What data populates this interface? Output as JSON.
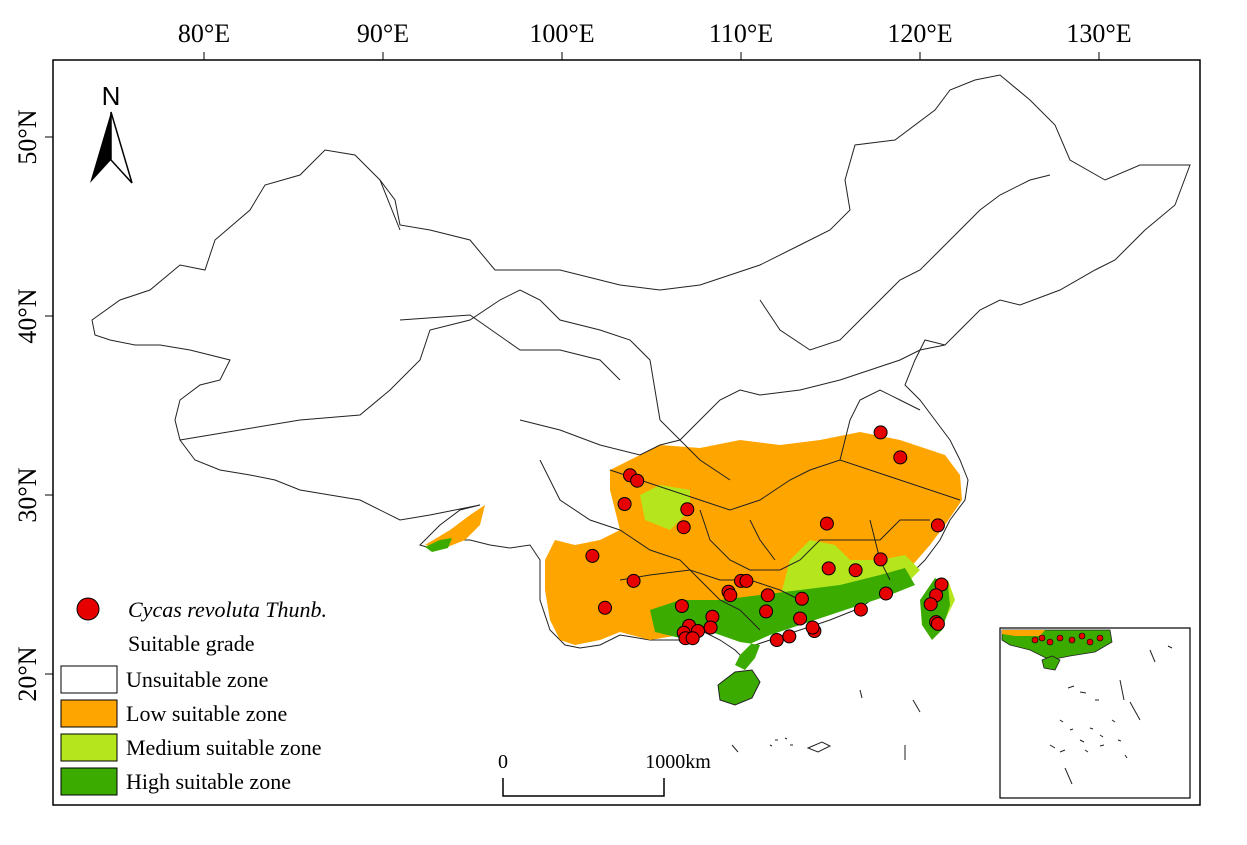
{
  "colors": {
    "unsuitable": "#ffffff",
    "low": "#ffa500",
    "medium": "#b5e61d",
    "high": "#3cab00",
    "occurrence": "#e60000",
    "outline": "#222222"
  },
  "axes": {
    "top_labels": [
      "80°E",
      "90°E",
      "100°E",
      "110°E",
      "120°E",
      "130°E"
    ],
    "left_labels": [
      "50°N",
      "40°N",
      "30°N",
      "20°N"
    ]
  },
  "north_arrow": {
    "label": "N",
    "icon": "north-arrow-icon"
  },
  "legend": {
    "occurrence_label": "Cycas revoluta Thunb.",
    "grade_title": "Suitable grade",
    "items": [
      {
        "label": "Unsuitable zone",
        "color": "#ffffff"
      },
      {
        "label": "Low suitable zone",
        "color": "#ffa500"
      },
      {
        "label": "Medium suitable zone",
        "color": "#b5e61d"
      },
      {
        "label": "High suitable zone",
        "color": "#3cab00"
      }
    ]
  },
  "scale_bar": {
    "start_label": "0",
    "end_label": "1000km"
  },
  "occurrences": [
    {
      "lon": 117.8,
      "lat": 33.5
    },
    {
      "lon": 118.9,
      "lat": 32.1
    },
    {
      "lon": 103.8,
      "lat": 31.1
    },
    {
      "lon": 104.2,
      "lat": 30.8
    },
    {
      "lon": 103.5,
      "lat": 29.5
    },
    {
      "lon": 107.0,
      "lat": 29.2
    },
    {
      "lon": 106.8,
      "lat": 28.2
    },
    {
      "lon": 114.8,
      "lat": 28.4
    },
    {
      "lon": 121.0,
      "lat": 28.3
    },
    {
      "lon": 101.7,
      "lat": 26.6
    },
    {
      "lon": 104.0,
      "lat": 25.2
    },
    {
      "lon": 114.9,
      "lat": 25.9
    },
    {
      "lon": 116.4,
      "lat": 25.8
    },
    {
      "lon": 117.8,
      "lat": 26.4
    },
    {
      "lon": 110.0,
      "lat": 25.2
    },
    {
      "lon": 110.3,
      "lat": 25.2
    },
    {
      "lon": 109.3,
      "lat": 24.6
    },
    {
      "lon": 109.4,
      "lat": 24.4
    },
    {
      "lon": 111.5,
      "lat": 24.4
    },
    {
      "lon": 113.4,
      "lat": 24.2
    },
    {
      "lon": 118.1,
      "lat": 24.5
    },
    {
      "lon": 121.2,
      "lat": 25.0
    },
    {
      "lon": 120.9,
      "lat": 24.4
    },
    {
      "lon": 120.6,
      "lat": 23.9
    },
    {
      "lon": 102.4,
      "lat": 23.7
    },
    {
      "lon": 106.7,
      "lat": 23.8
    },
    {
      "lon": 111.4,
      "lat": 23.5
    },
    {
      "lon": 108.4,
      "lat": 23.2
    },
    {
      "lon": 113.3,
      "lat": 23.1
    },
    {
      "lon": 116.7,
      "lat": 23.6
    },
    {
      "lon": 120.9,
      "lat": 22.9
    },
    {
      "lon": 121.0,
      "lat": 22.8
    },
    {
      "lon": 107.1,
      "lat": 22.7
    },
    {
      "lon": 107.6,
      "lat": 22.4
    },
    {
      "lon": 108.3,
      "lat": 22.6
    },
    {
      "lon": 106.8,
      "lat": 22.3
    },
    {
      "lon": 106.9,
      "lat": 22.0
    },
    {
      "lon": 107.3,
      "lat": 22.0
    },
    {
      "lon": 112.0,
      "lat": 21.9
    },
    {
      "lon": 112.7,
      "lat": 22.1
    },
    {
      "lon": 114.1,
      "lat": 22.4
    },
    {
      "lon": 114.0,
      "lat": 22.6
    }
  ]
}
